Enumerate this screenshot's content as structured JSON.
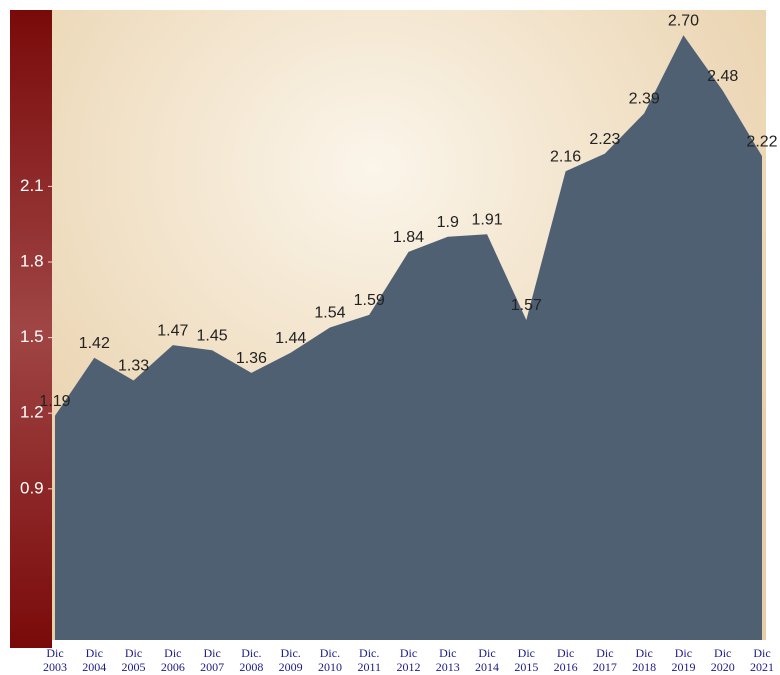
{
  "chart_data": {
    "type": "area",
    "categories": [
      "Dic 2003",
      "Dic 2004",
      "Dic 2005",
      "Dic 2006",
      "Dic 2007",
      "Dic. 2008",
      "Dic. 2009",
      "Dic. 2010",
      "Dic. 2011",
      "Dic 2012",
      "Dic 2013",
      "Dic 2014",
      "Dic 2015",
      "Dic 2016",
      "Dic 2017",
      "Dic 2018",
      "Dic 2019",
      "Dic 2020",
      "Dic 2021"
    ],
    "values": [
      1.19,
      1.42,
      1.33,
      1.47,
      1.45,
      1.36,
      1.44,
      1.54,
      1.59,
      1.84,
      1.9,
      1.91,
      1.57,
      2.16,
      2.23,
      2.39,
      2.7,
      2.48,
      2.22
    ],
    "value_labels": [
      "1.19",
      "1.42",
      "1.33",
      "1.47",
      "1.45",
      "1.36",
      "1.44",
      "1.54",
      "1.59",
      "1.84",
      "1.9",
      "1.91",
      "1.57",
      "2.16",
      "2.23",
      "2.39",
      "2.70",
      "2.48",
      "2.22"
    ],
    "color": "#4f6073",
    "ylim": [
      0.3,
      2.8
    ],
    "yticks": [
      0.9,
      1.2,
      1.5,
      1.8,
      2.1
    ]
  }
}
